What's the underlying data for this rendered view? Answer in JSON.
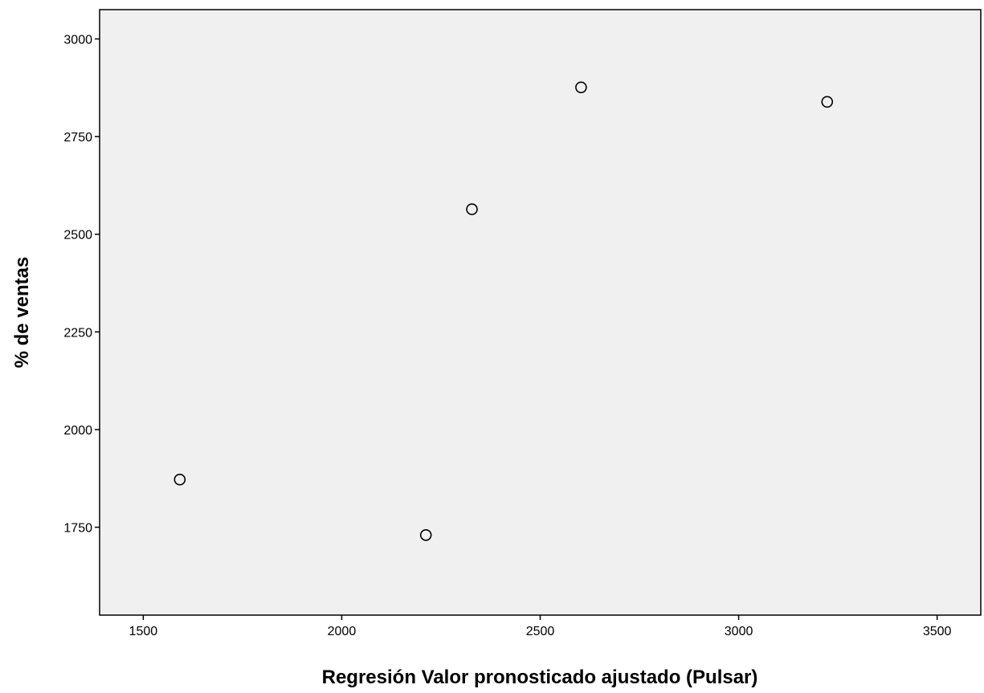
{
  "chart_data": {
    "type": "scatter",
    "title": "",
    "xlabel": "Regresión Valor pronosticado ajustado (Pulsar)",
    "ylabel": "% de ventas",
    "xlim": [
      1390,
      3610
    ],
    "ylim": [
      1525,
      3075
    ],
    "x_ticks": [
      1500,
      2000,
      2500,
      3000,
      3500
    ],
    "y_ticks": [
      1750,
      2000,
      2250,
      2500,
      2750,
      3000
    ],
    "x_tick_labels": [
      "1500",
      "2000",
      "2500",
      "3000",
      "3500"
    ],
    "y_tick_labels": [
      "1750",
      "2000",
      "2250",
      "2500",
      "2750",
      "3000"
    ],
    "grid": false,
    "legend": "none",
    "points": [
      {
        "x": 1592,
        "y": 1872
      },
      {
        "x": 2212,
        "y": 1730
      },
      {
        "x": 2328,
        "y": 2564
      },
      {
        "x": 2603,
        "y": 2876
      },
      {
        "x": 3223,
        "y": 2839
      }
    ],
    "colors": {
      "plot_background": "#f0f0f0",
      "marker_stroke": "#000000",
      "marker_fill": "#f0f0f0",
      "axis": "#000000"
    }
  }
}
